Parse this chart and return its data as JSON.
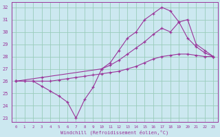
{
  "xlabel": "Windchill (Refroidissement éolien,°C)",
  "background_color": "#cce8f0",
  "grid_color": "#99ccbb",
  "line_color": "#993399",
  "xlim": [
    -0.5,
    23.5
  ],
  "ylim": [
    22.7,
    32.4
  ],
  "xticks": [
    0,
    1,
    2,
    3,
    4,
    5,
    6,
    7,
    8,
    9,
    10,
    11,
    12,
    13,
    14,
    15,
    16,
    17,
    18,
    19,
    20,
    21,
    22,
    23
  ],
  "yticks": [
    23,
    24,
    25,
    26,
    27,
    28,
    29,
    30,
    31,
    32
  ],
  "line1_x": [
    0,
    1,
    2,
    3,
    4,
    5,
    6,
    7,
    8,
    9,
    10,
    11,
    12,
    13,
    14,
    15,
    16,
    17,
    18,
    19,
    20,
    21,
    22,
    23
  ],
  "line1_y": [
    26.0,
    26.0,
    26.0,
    26.0,
    26.0,
    26.1,
    26.2,
    26.3,
    26.4,
    26.5,
    26.6,
    26.7,
    26.8,
    27.0,
    27.2,
    27.5,
    27.8,
    28.0,
    28.1,
    28.2,
    28.2,
    28.1,
    28.0,
    28.0
  ],
  "line2_x": [
    0,
    1,
    2,
    3,
    4,
    5,
    6,
    7,
    8,
    9,
    10,
    11,
    12,
    13,
    14,
    15,
    16,
    17,
    18,
    19,
    20,
    21,
    22,
    23
  ],
  "line2_y": [
    26.0,
    26.0,
    26.0,
    25.6,
    25.2,
    24.8,
    24.3,
    23.0,
    24.5,
    25.5,
    27.0,
    27.5,
    28.5,
    29.5,
    30.0,
    31.0,
    31.5,
    32.0,
    31.7,
    30.8,
    29.5,
    28.8,
    28.3,
    28.0
  ],
  "line3_x": [
    0,
    3,
    10,
    11,
    12,
    13,
    14,
    15,
    16,
    17,
    18,
    19,
    20,
    21,
    22,
    23
  ],
  "line3_y": [
    26.0,
    26.3,
    27.0,
    27.3,
    27.7,
    28.2,
    28.7,
    29.2,
    29.8,
    30.3,
    30.0,
    30.8,
    31.0,
    29.0,
    28.5,
    28.0
  ]
}
